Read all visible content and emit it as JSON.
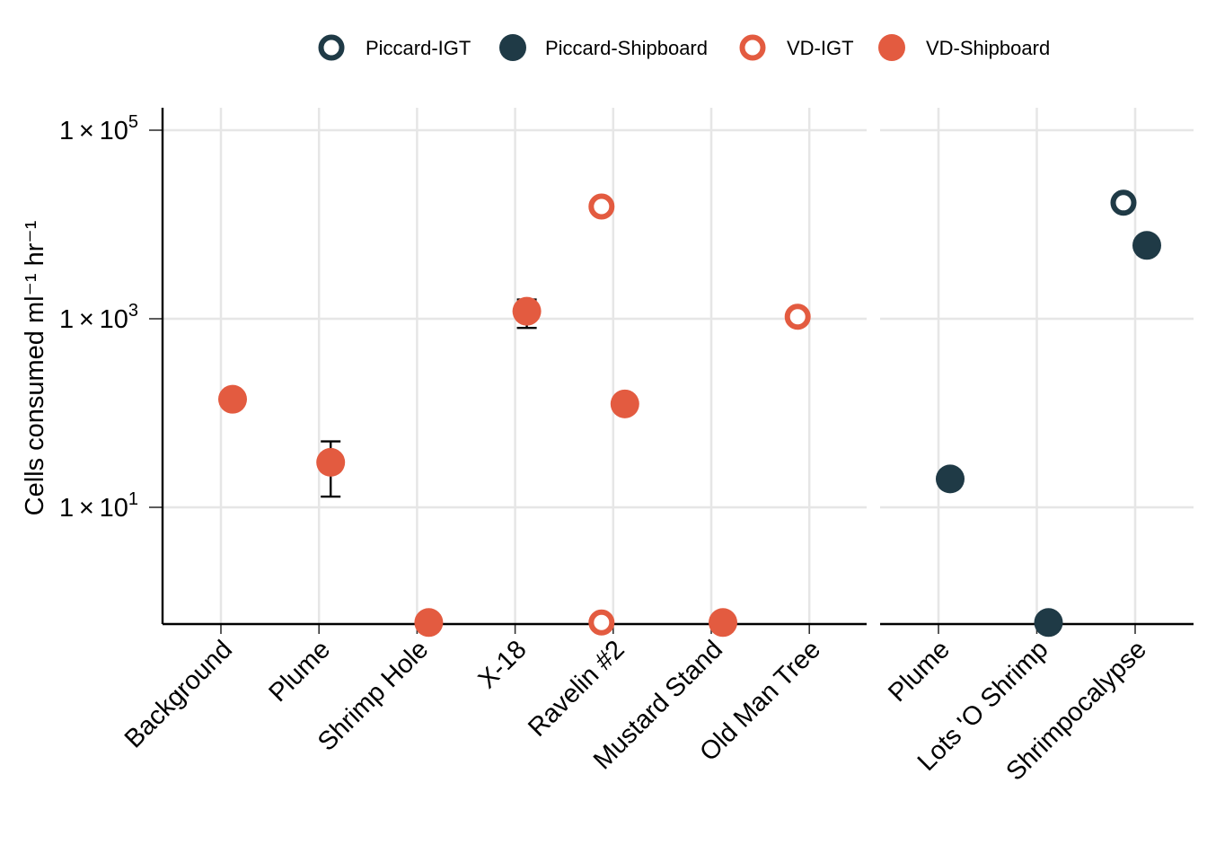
{
  "chart_data": {
    "type": "scatter",
    "ylabel": "Cells consumed  ml⁻¹ hr⁻¹",
    "y_scale": "log10",
    "y_ticks": [
      {
        "value": 10,
        "mantissa": "1",
        "exponent": "1"
      },
      {
        "value": 1000,
        "mantissa": "1",
        "exponent": "3"
      },
      {
        "value": 100000,
        "mantissa": "1",
        "exponent": "5"
      }
    ],
    "grid": true,
    "legend_position": "top",
    "legend": [
      {
        "name": "Piccard-IGT",
        "color": "#1f3a46",
        "filled": false
      },
      {
        "name": "Piccard-Shipboard",
        "color": "#1f3a46",
        "filled": true
      },
      {
        "name": "VD-IGT",
        "color": "#e35b40",
        "filled": false
      },
      {
        "name": "VD-Shipboard",
        "color": "#e35b40",
        "filled": true
      }
    ],
    "panels": [
      {
        "categories": [
          "Background",
          "Plume",
          "Shrimp Hole",
          "X-18",
          "Ravelin #2",
          "Mustard Stand",
          "Old Man Tree"
        ],
        "points": [
          {
            "category": "Background",
            "series": "VD-Shipboard",
            "y": 140,
            "ymin": 115,
            "ymax": 145
          },
          {
            "category": "Plume",
            "series": "VD-Shipboard",
            "y": 30,
            "ymin": 13,
            "ymax": 50
          },
          {
            "category": "Shrimp Hole",
            "series": "VD-Shipboard",
            "y": 0.6
          },
          {
            "category": "X-18",
            "series": "VD-Shipboard",
            "y": 1200,
            "ymin": 800,
            "ymax": 1600
          },
          {
            "category": "Ravelin #2",
            "series": "VD-IGT",
            "y": 15500
          },
          {
            "category": "Ravelin #2",
            "series": "VD-IGT",
            "y": 0.6
          },
          {
            "category": "Ravelin #2",
            "series": "VD-Shipboard",
            "y": 125
          },
          {
            "category": "Mustard Stand",
            "series": "VD-Shipboard",
            "y": 0.6
          },
          {
            "category": "Old Man Tree",
            "series": "VD-IGT",
            "y": 1050
          }
        ]
      },
      {
        "categories": [
          "Plume",
          "Lots 'O Shrimp",
          "Shrimpocalypse"
        ],
        "points": [
          {
            "category": "Plume",
            "series": "Piccard-Shipboard",
            "y": 20
          },
          {
            "category": "Lots 'O Shrimp",
            "series": "Piccard-Shipboard",
            "y": 0.6
          },
          {
            "category": "Shrimpocalypse",
            "series": "Piccard-IGT",
            "y": 17000
          },
          {
            "category": "Shrimpocalypse",
            "series": "Piccard-Shipboard",
            "y": 6000
          }
        ]
      }
    ]
  }
}
